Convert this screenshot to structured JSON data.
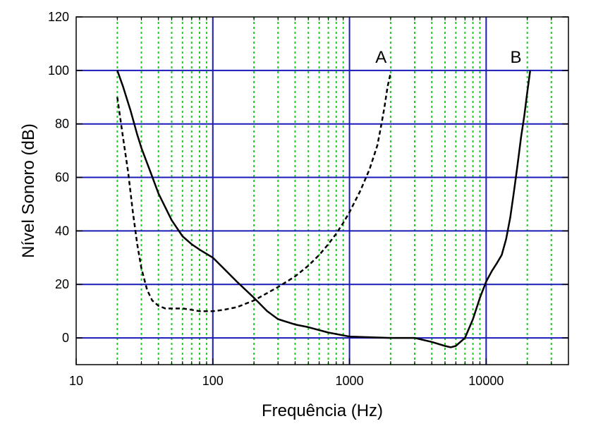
{
  "chart_data": {
    "type": "line",
    "xlabel": "Frequência (Hz)",
    "ylabel": "Nível Sonoro (dB)",
    "xscale": "log",
    "xlim": [
      10,
      40000
    ],
    "ylim": [
      -10,
      120
    ],
    "x_ticks": [
      10,
      100,
      1000,
      10000
    ],
    "x_tick_labels": [
      "10",
      "100",
      "1000",
      "10000"
    ],
    "y_ticks": [
      0,
      20,
      40,
      60,
      80,
      100,
      120
    ],
    "y_tick_labels": [
      "0",
      "20",
      "40",
      "60",
      "80",
      "100",
      "120"
    ],
    "grid": {
      "major": true,
      "minor_x": true,
      "major_color": "#1a1ab8",
      "minor_color": "#22c922"
    },
    "series": [
      {
        "name": "A",
        "style": "dashed",
        "color": "#000000",
        "x": [
          20,
          22,
          24,
          26,
          28,
          30,
          33,
          36,
          40,
          45,
          50,
          60,
          70,
          80,
          90,
          100,
          120,
          150,
          200,
          300,
          400,
          500,
          600,
          700,
          800,
          900,
          1000,
          1200,
          1400,
          1600,
          1700,
          1800,
          1900,
          2000
        ],
        "y": [
          90,
          75,
          62,
          47,
          35,
          26,
          18,
          14,
          12,
          11,
          11,
          11,
          10.5,
          10,
          10,
          10,
          10.5,
          11.5,
          14,
          19,
          23,
          27,
          31,
          35,
          39,
          43,
          47,
          55,
          63,
          72,
          79,
          86,
          94,
          99
        ]
      },
      {
        "name": "B",
        "style": "solid",
        "color": "#000000",
        "x": [
          20,
          22,
          25,
          28,
          30,
          35,
          40,
          50,
          60,
          70,
          80,
          100,
          120,
          150,
          200,
          250,
          300,
          400,
          500,
          700,
          1000,
          2000,
          3000,
          4000,
          5000,
          5500,
          6000,
          7000,
          8000,
          9000,
          10000,
          11000,
          12000,
          13000,
          14000,
          15000,
          16000,
          17000,
          18000,
          19000,
          20000,
          21000
        ],
        "y": [
          100,
          94,
          85,
          76,
          71,
          62,
          54,
          44,
          38,
          35,
          33,
          30,
          26,
          21,
          15,
          10,
          7,
          5,
          4,
          2,
          0.5,
          0,
          0,
          -1.5,
          -3,
          -3.5,
          -3,
          0,
          7,
          15,
          21,
          25,
          28,
          31,
          37,
          45,
          55,
          65,
          75,
          83,
          92,
          100
        ]
      }
    ],
    "annotations": [
      {
        "text": "A",
        "x": 1700,
        "y": 105
      },
      {
        "text": "B",
        "x": 16500,
        "y": 105
      }
    ]
  }
}
